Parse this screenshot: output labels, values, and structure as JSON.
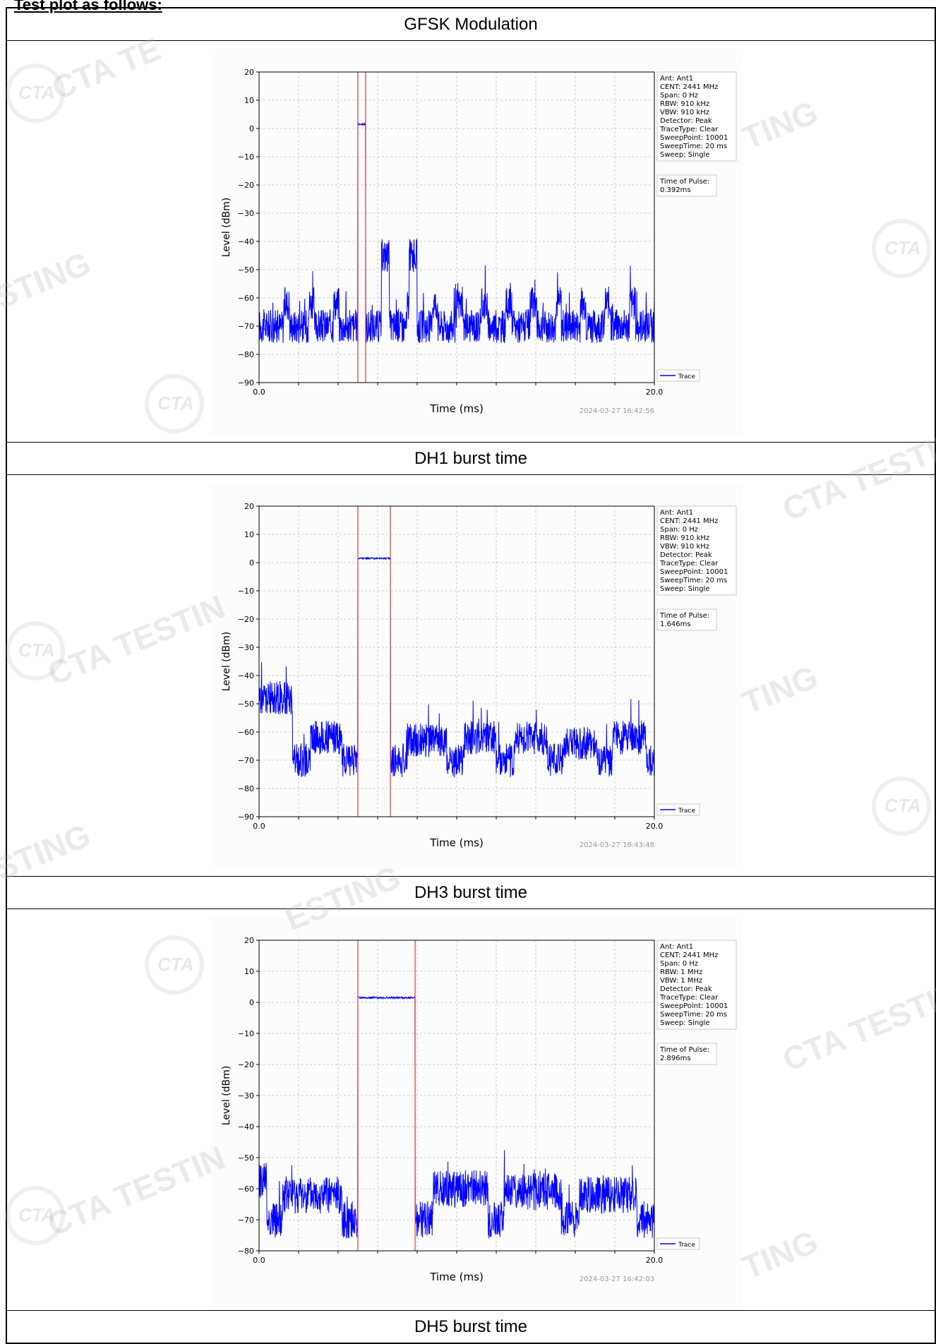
{
  "page": {
    "heading": "Test plot as follows:",
    "header_label": "GFSK Modulation",
    "watermark_text": "CTA TESTING",
    "watermark_fragments": [
      "CTA TE",
      "STING",
      "TING",
      "CTA TESTIN",
      "CTA TESTIN",
      "STING",
      "TING",
      "CTA TESTING",
      "TING",
      "CTA TESTING",
      "ESTING"
    ],
    "logo_text": "CTA"
  },
  "plots": [
    {
      "caption": "DH1 burst time",
      "ylabel": "Level (dBm)",
      "xlabel": "Time (ms)",
      "timestamp": "2024-03-27 16:42:56",
      "x_tick_labels": [
        "0.0",
        "20.0"
      ],
      "y_ticks": [
        "20",
        "10",
        "0",
        "−10",
        "−20",
        "−30",
        "−40",
        "−50",
        "−60",
        "−70",
        "−80",
        "−90"
      ],
      "legend": "Trace",
      "settings": [
        "Ant: Ant1",
        "CENT: 2441 MHz",
        "Span: 0 Hz",
        "RBW: 910 kHz",
        "VBW: 910 kHz",
        "Detector: Peak",
        "TraceType: Clear",
        "SweepPoint: 10001",
        "SweepTime: 20 ms",
        "Sweep: Single"
      ],
      "pulse_label": "Time of Pulse:",
      "pulse_value": "0.392ms"
    },
    {
      "caption": "DH3 burst time",
      "ylabel": "Level (dBm)",
      "xlabel": "Time (ms)",
      "timestamp": "2024-03-27 16:43:48",
      "x_tick_labels": [
        "0.0",
        "20.0"
      ],
      "y_ticks": [
        "20",
        "10",
        "0",
        "−10",
        "−20",
        "−30",
        "−40",
        "−50",
        "−60",
        "−70",
        "−80",
        "−90"
      ],
      "legend": "Trace",
      "settings": [
        "Ant: Ant1",
        "CENT: 2441 MHz",
        "Span: 0 Hz",
        "RBW: 910 kHz",
        "VBW: 910 kHz",
        "Detector: Peak",
        "TraceType: Clear",
        "SweepPoint: 10001",
        "SweepTime: 20 ms",
        "Sweep: Single"
      ],
      "pulse_label": "Time of Pulse:",
      "pulse_value": "1.646ms"
    },
    {
      "caption": "DH5 burst time",
      "ylabel": "Level (dBm)",
      "xlabel": "Time (ms)",
      "timestamp": "2024-03-27 16:42:03",
      "x_tick_labels": [
        "0.0",
        "20.0"
      ],
      "y_ticks": [
        "20",
        "10",
        "0",
        "−10",
        "−20",
        "−30",
        "−40",
        "−50",
        "−60",
        "−70",
        "−80"
      ],
      "legend": "Trace",
      "settings": [
        "Ant: Ant1",
        "CENT: 2441 MHz",
        "Span: 0 Hz",
        "RBW: 1 MHz",
        "VBW: 1 MHz",
        "Detector: Peak",
        "TraceType: Clear",
        "SweepPoint: 10001",
        "SweepTime: 20 ms",
        "Sweep: Single"
      ],
      "pulse_label": "Time of Pulse:",
      "pulse_value": "2.896ms"
    }
  ],
  "chart_data": [
    {
      "type": "line",
      "xlabel": "Time (ms)",
      "ylabel": "Level (dBm)",
      "xlim": [
        0,
        20
      ],
      "ylim": [
        -90,
        20
      ],
      "grid": true,
      "legend": "bottom-right",
      "series": [
        {
          "name": "Trace",
          "color": "#0000ff"
        }
      ],
      "markers_ms": [
        5.0,
        5.392
      ],
      "pulse_level_dbm": 1.5,
      "baseline_dbm": -70,
      "noise_floor": "-78 to -62",
      "bursts": [
        [
          6.2,
          6.6,
          -45
        ],
        [
          7.6,
          8.0,
          -45
        ]
      ],
      "periodic_bumps_dbm": -62
    },
    {
      "type": "line",
      "xlabel": "Time (ms)",
      "ylabel": "Level (dBm)",
      "xlim": [
        0,
        20
      ],
      "ylim": [
        -90,
        20
      ],
      "grid": true,
      "legend": "bottom-right",
      "series": [
        {
          "name": "Trace",
          "color": "#0000ff"
        }
      ],
      "markers_ms": [
        5.0,
        6.646
      ],
      "pulse_level_dbm": 1.5,
      "segments": [
        [
          0,
          1.7,
          -48
        ],
        [
          1.7,
          2.6,
          -70
        ],
        [
          2.6,
          4.2,
          -62
        ],
        [
          4.2,
          5.0,
          -70
        ],
        [
          6.65,
          7.5,
          -70
        ],
        [
          7.5,
          9.5,
          -63
        ],
        [
          9.5,
          10.4,
          -70
        ],
        [
          10.4,
          12.0,
          -62
        ],
        [
          12.0,
          12.9,
          -70
        ],
        [
          12.9,
          14.6,
          -62
        ],
        [
          14.6,
          15.4,
          -70
        ],
        [
          15.4,
          17.1,
          -64
        ],
        [
          17.1,
          17.9,
          -70
        ],
        [
          17.9,
          19.6,
          -62
        ],
        [
          19.6,
          20,
          -70
        ]
      ]
    },
    {
      "type": "line",
      "xlabel": "Time (ms)",
      "ylabel": "Level (dBm)",
      "xlim": [
        0,
        20
      ],
      "ylim": [
        -80,
        20
      ],
      "grid": true,
      "legend": "bottom-right",
      "series": [
        {
          "name": "Trace",
          "color": "#0000ff"
        }
      ],
      "markers_ms": [
        5.0,
        7.896
      ],
      "pulse_level_dbm": 1.5,
      "segments": [
        [
          0,
          0.4,
          -57
        ],
        [
          0.4,
          1.2,
          -70
        ],
        [
          1.2,
          4.2,
          -62
        ],
        [
          4.2,
          5.0,
          -70
        ],
        [
          7.9,
          8.8,
          -70
        ],
        [
          8.8,
          11.6,
          -60
        ],
        [
          11.6,
          12.4,
          -70
        ],
        [
          12.4,
          15.3,
          -61
        ],
        [
          15.3,
          16.2,
          -70
        ],
        [
          16.2,
          19.1,
          -62
        ],
        [
          19.1,
          20,
          -70
        ]
      ]
    }
  ]
}
